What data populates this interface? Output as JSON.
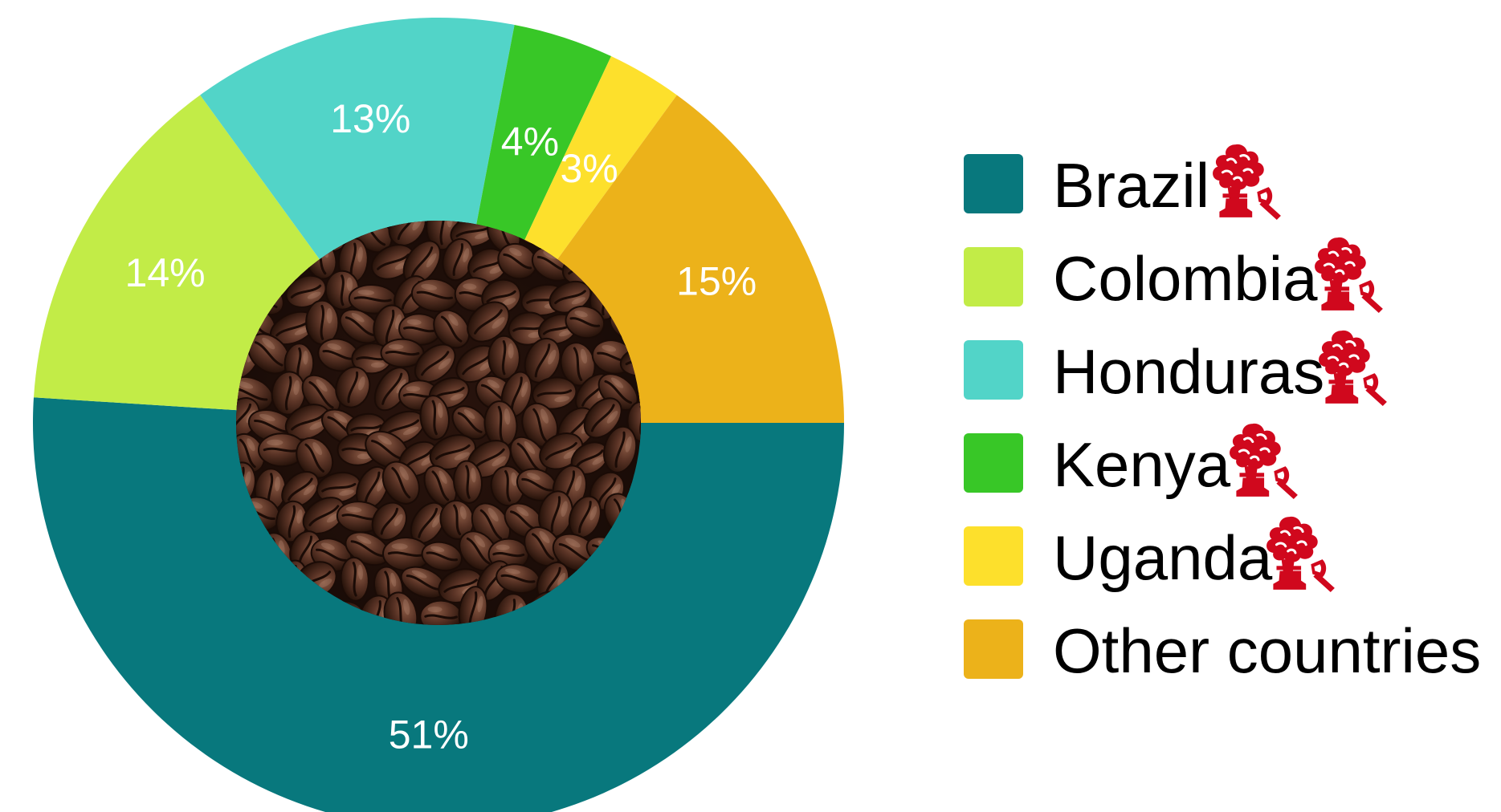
{
  "chart_data": {
    "type": "pie",
    "variant": "donut",
    "categories": [
      "Brazil",
      "Colombia",
      "Honduras",
      "Kenya",
      "Uganda",
      "Other countries"
    ],
    "values": [
      51,
      14,
      13,
      4,
      3,
      15
    ],
    "labels": [
      "51%",
      "14%",
      "13%",
      "4%",
      "3%",
      "15%"
    ],
    "colors": [
      "#08787d",
      "#c2ec47",
      "#52d4c8",
      "#38c727",
      "#fde02c",
      "#ecb21a"
    ],
    "legend_position": "right",
    "legend_icons": [
      "deforestation-icon",
      "deforestation-icon",
      "deforestation-icon",
      "deforestation-icon",
      "deforestation-icon",
      null
    ],
    "icon_color": "#d0081d",
    "center_image": "coffee-beans"
  }
}
